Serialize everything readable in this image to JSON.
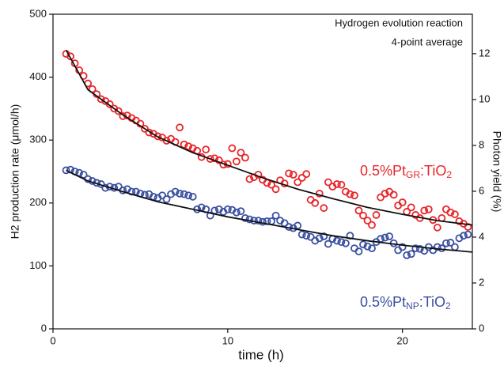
{
  "chart_data": {
    "type": "scatter",
    "annotations": [
      "Hydrogen evolution reaction",
      "4-point average"
    ],
    "xlabel": "time (h)",
    "ylabel": "H2 production rate (μmol/h)",
    "y2label": "Photon yield (%)",
    "xlim": [
      0,
      24
    ],
    "xticks": [
      0,
      10,
      20
    ],
    "ylim": [
      0,
      500
    ],
    "yticks": [
      0,
      100,
      200,
      300,
      400,
      500
    ],
    "y2lim": [
      0,
      13.72
    ],
    "y2ticks": [
      0,
      2,
      4,
      6,
      8,
      10,
      12
    ],
    "series": [
      {
        "type": "scatter",
        "name_parts": [
          "0.5%Pt",
          "GR",
          ":TiO",
          "2"
        ],
        "color": "#e8262a",
        "x": [
          0.75,
          1,
          1.25,
          1.5,
          1.75,
          2,
          2.25,
          2.5,
          2.75,
          3,
          3.25,
          3.5,
          3.75,
          4,
          4.25,
          4.5,
          4.75,
          5,
          5.25,
          5.5,
          5.75,
          6,
          6.25,
          6.5,
          6.75,
          7,
          7.25,
          7.5,
          7.75,
          8,
          8.25,
          8.5,
          8.75,
          9,
          9.25,
          9.5,
          9.75,
          10,
          10.25,
          10.5,
          10.75,
          11,
          11.25,
          11.5,
          11.75,
          12,
          12.25,
          12.5,
          12.75,
          13,
          13.25,
          13.5,
          13.75,
          14,
          14.25,
          14.5,
          14.75,
          15,
          15.25,
          15.5,
          15.75,
          16,
          16.25,
          16.5,
          16.75,
          17,
          17.25,
          17.5,
          17.75,
          18,
          18.25,
          18.5,
          18.75,
          19,
          19.25,
          19.5,
          19.75,
          20,
          20.25,
          20.5,
          20.75,
          21,
          21.25,
          21.5,
          21.75,
          22,
          22.25,
          22.5,
          22.75,
          23,
          23.25,
          23.5,
          23.75
        ],
        "values": [
          437,
          433,
          422,
          411,
          402,
          390,
          381,
          373,
          365,
          362,
          357,
          350,
          346,
          338,
          339,
          335,
          331,
          326,
          318,
          312,
          310,
          306,
          304,
          299,
          302,
          297,
          320,
          293,
          290,
          287,
          283,
          273,
          285,
          270,
          271,
          268,
          261,
          262,
          287,
          266,
          280,
          272,
          238,
          241,
          245,
          237,
          232,
          229,
          222,
          236,
          231,
          247,
          245,
          233,
          240,
          246,
          205,
          200,
          215,
          192,
          233,
          226,
          230,
          229,
          218,
          214,
          212,
          188,
          180,
          172,
          165,
          181,
          209,
          215,
          218,
          213,
          196,
          201,
          186,
          193,
          181,
          176,
          188,
          190,
          173,
          161,
          176,
          190,
          185,
          182,
          171,
          167,
          162
        ]
      },
      {
        "type": "scatter",
        "name_parts": [
          "0.5%Pt",
          "NP",
          ":TiO",
          "2"
        ],
        "color": "#3a4fa0",
        "x": [
          0.75,
          1,
          1.25,
          1.5,
          1.75,
          2,
          2.25,
          2.5,
          2.75,
          3,
          3.25,
          3.5,
          3.75,
          4,
          4.25,
          4.5,
          4.75,
          5,
          5.25,
          5.5,
          5.75,
          6,
          6.25,
          6.5,
          6.75,
          7,
          7.25,
          7.5,
          7.75,
          8,
          8.25,
          8.5,
          8.75,
          9,
          9.25,
          9.5,
          9.75,
          10,
          10.25,
          10.5,
          10.75,
          11,
          11.25,
          11.5,
          11.75,
          12,
          12.25,
          12.5,
          12.75,
          13,
          13.25,
          13.5,
          13.75,
          14,
          14.25,
          14.5,
          14.75,
          15,
          15.25,
          15.5,
          15.75,
          16,
          16.25,
          16.5,
          16.75,
          17,
          17.25,
          17.5,
          17.75,
          18,
          18.25,
          18.5,
          18.75,
          19,
          19.25,
          19.5,
          19.75,
          20,
          20.25,
          20.5,
          20.75,
          21,
          21.25,
          21.5,
          21.75,
          22,
          22.25,
          22.5,
          22.75,
          23,
          23.25,
          23.5,
          23.75
        ],
        "values": [
          252,
          253,
          250,
          248,
          245,
          238,
          235,
          232,
          230,
          224,
          226,
          224,
          226,
          220,
          222,
          218,
          218,
          215,
          213,
          214,
          210,
          208,
          212,
          206,
          214,
          218,
          215,
          214,
          212,
          210,
          190,
          193,
          190,
          180,
          188,
          190,
          186,
          190,
          189,
          185,
          187,
          176,
          174,
          172,
          172,
          170,
          171,
          171,
          180,
          172,
          168,
          162,
          160,
          164,
          150,
          148,
          146,
          140,
          144,
          147,
          135,
          143,
          140,
          138,
          136,
          148,
          128,
          123,
          134,
          131,
          128,
          138,
          143,
          145,
          147,
          136,
          125,
          130,
          117,
          119,
          128,
          127,
          124,
          130,
          125,
          130,
          128,
          136,
          137,
          130,
          144,
          148,
          150
        ]
      },
      {
        "type": "line",
        "color": "#111111",
        "x": [
          0.75,
          2,
          4,
          6,
          8,
          10,
          12,
          14,
          16,
          18,
          20,
          22,
          24
        ],
        "values": [
          443,
          380,
          340,
          305,
          280,
          260,
          240,
          222,
          207,
          193,
          182,
          172,
          165
        ]
      },
      {
        "type": "line",
        "color": "#111111",
        "x": [
          0.75,
          2,
          4,
          6,
          8,
          10,
          12,
          14,
          16,
          18,
          20,
          22,
          24
        ],
        "values": [
          252,
          235,
          218,
          202,
          190,
          178,
          168,
          158,
          148,
          140,
          133,
          127,
          122
        ]
      }
    ]
  }
}
